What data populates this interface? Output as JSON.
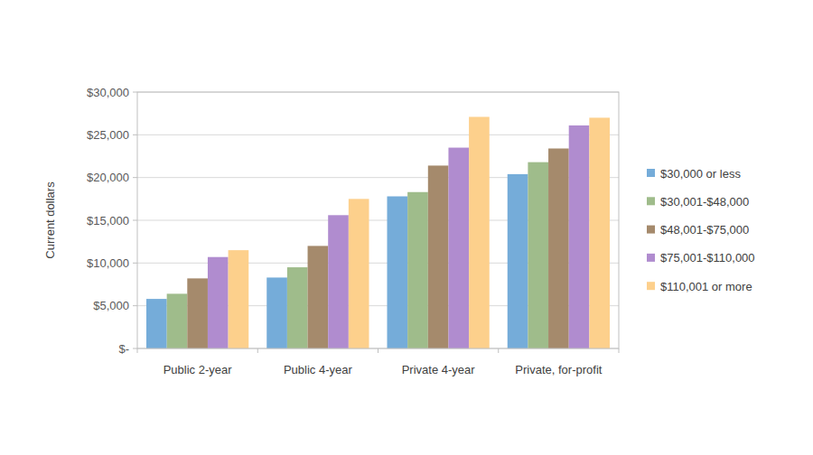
{
  "chart_data": {
    "type": "bar",
    "y_label": "Current dollars",
    "categories": [
      "Public 2-year",
      "Public 4-year",
      "Private 4-year",
      "Private, for-profit"
    ],
    "series": [
      {
        "name": "$30,000 or less",
        "color": "#75acd9",
        "values": [
          5800,
          8300,
          17800,
          20400
        ]
      },
      {
        "name": "$30,001-$48,000",
        "color": "#9fbc8b",
        "values": [
          6400,
          9500,
          18300,
          21800
        ]
      },
      {
        "name": "$48,001-$75,000",
        "color": "#a58a6c",
        "values": [
          8200,
          12000,
          21400,
          23400
        ]
      },
      {
        "name": "$75,001-$110,000",
        "color": "#b08ccf",
        "values": [
          10700,
          15600,
          23500,
          26100
        ]
      },
      {
        "name": "$110,001 or more",
        "color": "#fdd08c",
        "values": [
          11500,
          17500,
          27100,
          27000
        ]
      }
    ],
    "ylim": [
      0,
      30000
    ],
    "yticks": [
      {
        "value": 0,
        "label": "$-"
      },
      {
        "value": 5000,
        "label": "$5,000"
      },
      {
        "value": 10000,
        "label": "$10,000"
      },
      {
        "value": 15000,
        "label": "$15,000"
      },
      {
        "value": 20000,
        "label": "$20,000"
      },
      {
        "value": 25000,
        "label": "$25,000"
      },
      {
        "value": 30000,
        "label": "$30,000"
      }
    ],
    "grid": true,
    "legend": "right"
  }
}
